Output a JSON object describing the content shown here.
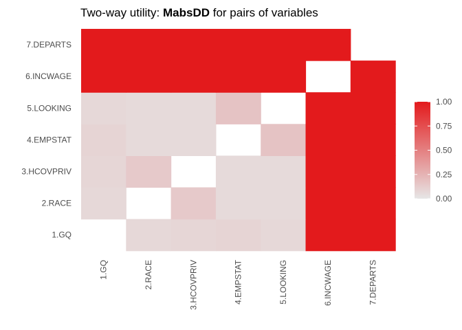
{
  "chart_data": {
    "type": "heatmap",
    "title_prefix": "Two-way utility: ",
    "title_bold": "MabsDD",
    "title_suffix": " for pairs of variables",
    "xlabel": "",
    "ylabel": "",
    "x_categories": [
      "1.GQ",
      "2.RACE",
      "3.HCOVPRIV",
      "4.EMPSTAT",
      "5.LOOKING",
      "6.INCWAGE",
      "7.DEPARTS"
    ],
    "y_categories": [
      "1.GQ",
      "2.RACE",
      "3.HCOVPRIV",
      "4.EMPSTAT",
      "5.LOOKING",
      "6.INCWAGE",
      "7.DEPARTS"
    ],
    "cells": [
      {
        "x": "2.RACE",
        "y": "1.GQ",
        "value": 0.07
      },
      {
        "x": "3.HCOVPRIV",
        "y": "1.GQ",
        "value": 0.08
      },
      {
        "x": "4.EMPSTAT",
        "y": "1.GQ",
        "value": 0.09
      },
      {
        "x": "5.LOOKING",
        "y": "1.GQ",
        "value": 0.07
      },
      {
        "x": "6.INCWAGE",
        "y": "1.GQ",
        "value": 1.0
      },
      {
        "x": "7.DEPARTS",
        "y": "1.GQ",
        "value": 1.0
      },
      {
        "x": "1.GQ",
        "y": "2.RACE",
        "value": 0.07
      },
      {
        "x": "3.HCOVPRIV",
        "y": "2.RACE",
        "value": 0.14
      },
      {
        "x": "4.EMPSTAT",
        "y": "2.RACE",
        "value": 0.06
      },
      {
        "x": "5.LOOKING",
        "y": "2.RACE",
        "value": 0.06
      },
      {
        "x": "6.INCWAGE",
        "y": "2.RACE",
        "value": 1.0
      },
      {
        "x": "7.DEPARTS",
        "y": "2.RACE",
        "value": 1.0
      },
      {
        "x": "1.GQ",
        "y": "3.HCOVPRIV",
        "value": 0.08
      },
      {
        "x": "2.RACE",
        "y": "3.HCOVPRIV",
        "value": 0.14
      },
      {
        "x": "4.EMPSTAT",
        "y": "3.HCOVPRIV",
        "value": 0.06
      },
      {
        "x": "5.LOOKING",
        "y": "3.HCOVPRIV",
        "value": 0.06
      },
      {
        "x": "6.INCWAGE",
        "y": "3.HCOVPRIV",
        "value": 1.0
      },
      {
        "x": "7.DEPARTS",
        "y": "3.HCOVPRIV",
        "value": 1.0
      },
      {
        "x": "1.GQ",
        "y": "4.EMPSTAT",
        "value": 0.09
      },
      {
        "x": "2.RACE",
        "y": "4.EMPSTAT",
        "value": 0.06
      },
      {
        "x": "3.HCOVPRIV",
        "y": "4.EMPSTAT",
        "value": 0.06
      },
      {
        "x": "5.LOOKING",
        "y": "4.EMPSTAT",
        "value": 0.17
      },
      {
        "x": "6.INCWAGE",
        "y": "4.EMPSTAT",
        "value": 1.0
      },
      {
        "x": "7.DEPARTS",
        "y": "4.EMPSTAT",
        "value": 1.0
      },
      {
        "x": "1.GQ",
        "y": "5.LOOKING",
        "value": 0.07
      },
      {
        "x": "2.RACE",
        "y": "5.LOOKING",
        "value": 0.06
      },
      {
        "x": "3.HCOVPRIV",
        "y": "5.LOOKING",
        "value": 0.06
      },
      {
        "x": "4.EMPSTAT",
        "y": "5.LOOKING",
        "value": 0.17
      },
      {
        "x": "6.INCWAGE",
        "y": "5.LOOKING",
        "value": 1.0
      },
      {
        "x": "7.DEPARTS",
        "y": "5.LOOKING",
        "value": 1.0
      },
      {
        "x": "1.GQ",
        "y": "6.INCWAGE",
        "value": 1.0
      },
      {
        "x": "2.RACE",
        "y": "6.INCWAGE",
        "value": 1.0
      },
      {
        "x": "3.HCOVPRIV",
        "y": "6.INCWAGE",
        "value": 1.0
      },
      {
        "x": "4.EMPSTAT",
        "y": "6.INCWAGE",
        "value": 1.0
      },
      {
        "x": "5.LOOKING",
        "y": "6.INCWAGE",
        "value": 1.0
      },
      {
        "x": "7.DEPARTS",
        "y": "6.INCWAGE",
        "value": 1.0
      },
      {
        "x": "1.GQ",
        "y": "7.DEPARTS",
        "value": 1.0
      },
      {
        "x": "2.RACE",
        "y": "7.DEPARTS",
        "value": 1.0
      },
      {
        "x": "3.HCOVPRIV",
        "y": "7.DEPARTS",
        "value": 1.0
      },
      {
        "x": "4.EMPSTAT",
        "y": "7.DEPARTS",
        "value": 1.0
      },
      {
        "x": "5.LOOKING",
        "y": "7.DEPARTS",
        "value": 1.0
      },
      {
        "x": "6.INCWAGE",
        "y": "7.DEPARTS",
        "value": 1.0
      }
    ],
    "color_scale": {
      "low": "#e6e6e6",
      "high": "#e31a1c",
      "domain": [
        0,
        1
      ]
    },
    "legend": {
      "title": "",
      "ticks": [
        1.0,
        0.75,
        0.5,
        0.25,
        0.0
      ],
      "tick_labels": [
        "1.00",
        "0.75",
        "0.50",
        "0.25",
        "0.00"
      ],
      "placement": "right"
    },
    "grid": false
  }
}
